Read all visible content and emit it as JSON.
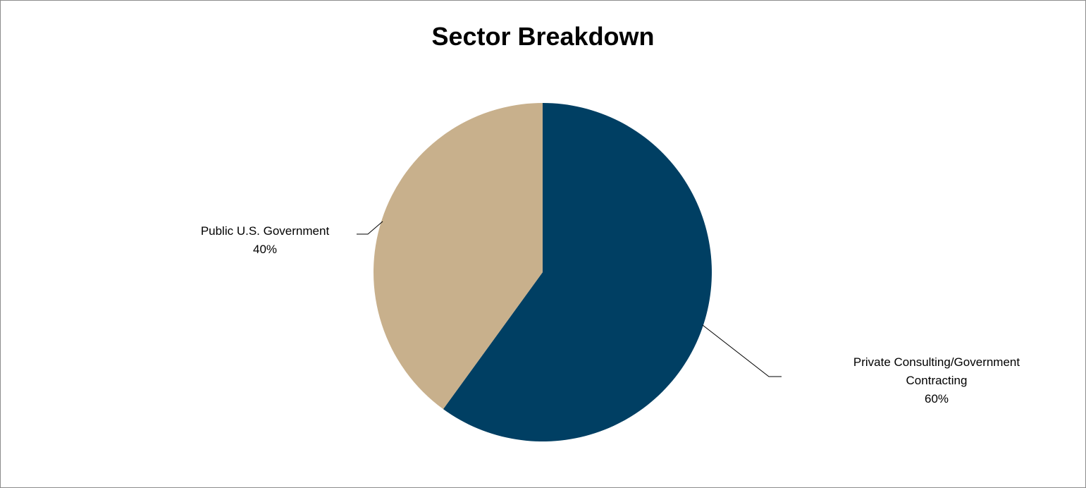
{
  "chart_data": {
    "type": "pie",
    "title": "Sector Breakdown",
    "slices": [
      {
        "label": "Private Consulting/Government Contracting",
        "label_lines": [
          "Private Consulting/Government",
          "Contracting"
        ],
        "value": 60,
        "percent_label": "60%",
        "color": "#003f63"
      },
      {
        "label": "Public U.S. Government",
        "label_lines": [
          "Public U.S. Government"
        ],
        "value": 40,
        "percent_label": "40%",
        "color": "#c8b08c"
      }
    ],
    "start_angle": "12 o'clock",
    "direction": "clockwise",
    "legend": "none",
    "data_labels": "outside with leader lines"
  }
}
